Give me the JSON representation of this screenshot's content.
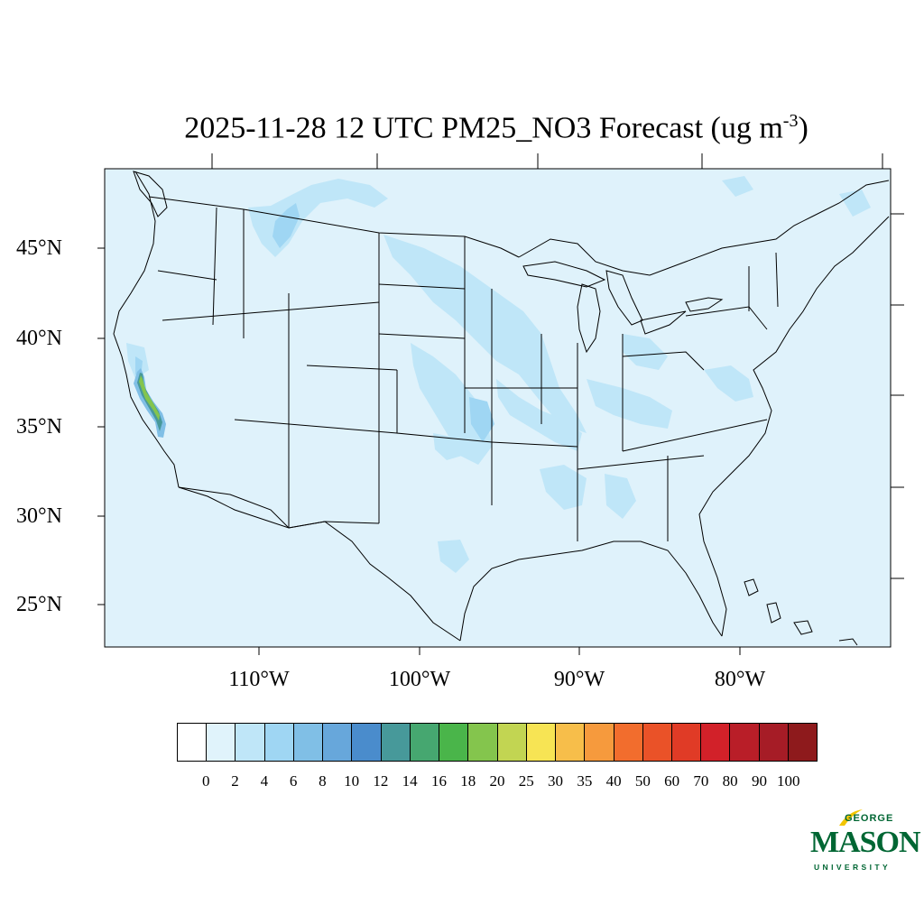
{
  "title": {
    "main": "2025-11-28 12 UTC PM25_NO3 Forecast (ug m",
    "superscript": "-3",
    "close": ")"
  },
  "map": {
    "background_color": "#dff2fb",
    "latitude_labels": [
      "45°N",
      "40°N",
      "35°N",
      "30°N",
      "25°N"
    ],
    "longitude_labels": [
      "110°W",
      "100°W",
      "90°W",
      "80°W"
    ]
  },
  "colorbar": {
    "labels": [
      "0",
      "2",
      "4",
      "6",
      "8",
      "10",
      "12",
      "14",
      "16",
      "18",
      "20",
      "25",
      "30",
      "35",
      "40",
      "50",
      "60",
      "70",
      "80",
      "90",
      "100"
    ],
    "colors": [
      "#ffffff",
      "#e0f3fb",
      "#bfe6f8",
      "#9fd6f3",
      "#80bfe6",
      "#67a7db",
      "#4a8ccc",
      "#47999a",
      "#46a770",
      "#4ab54a",
      "#84c54d",
      "#c2d552",
      "#f7e454",
      "#f7be4a",
      "#f69a3d",
      "#f26d2d",
      "#ea5228",
      "#e03b26",
      "#d22129",
      "#b91e28",
      "#a61c26",
      "#8e1a1c"
    ]
  },
  "logo": {
    "top": "GEORGE",
    "main": "MASON",
    "bottom": "UNIVERSITY",
    "color": "#006633"
  }
}
